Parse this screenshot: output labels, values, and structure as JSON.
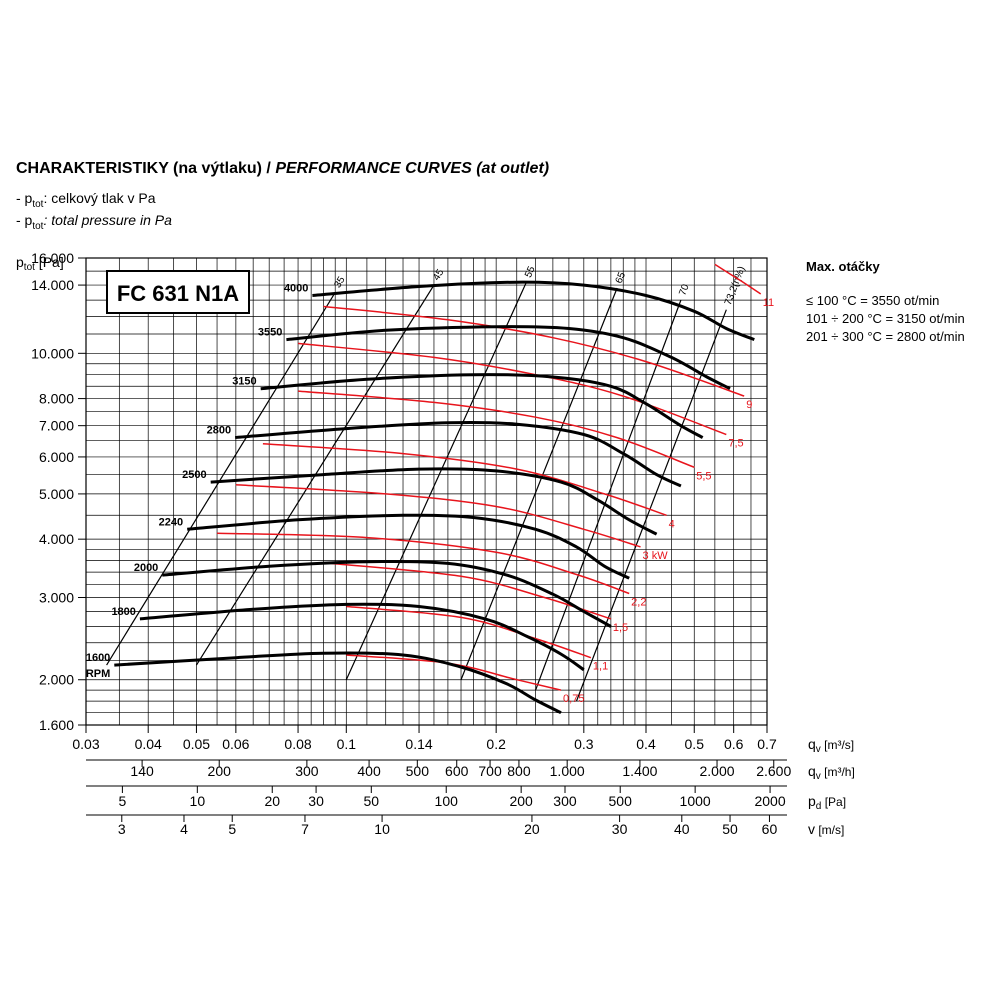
{
  "heading": {
    "cz": "CHARAKTERISTIKY (na výtlaku) /",
    "en": "PERFORMANCE CURVES (at outlet)"
  },
  "legend": {
    "cz_prefix": "- p",
    "cz_sub": "tot",
    "cz_text": ": celkový tlak v Pa",
    "en_prefix": "- p",
    "en_sub": "tot",
    "en_text": ": total pressure in Pa"
  },
  "max_speed": {
    "title": "Max. otáčky",
    "lines": [
      "≤ 100 °C = 3550 ot/min",
      "101 ÷ 200 °C = 3150 ot/min",
      "201 ÷ 300 °C = 2800 ot/min"
    ]
  },
  "colors": {
    "fan_curve": "#000000",
    "power_curve": "#e8141c",
    "grid": "#000000"
  },
  "chart_data": {
    "type": "line",
    "model": "FC 631 N1A",
    "ylabel_base": "p",
    "ylabel_sub": "tot",
    "ylabel_unit": "[Pa]",
    "y_scale": "log",
    "ylim": [
      1600,
      16000
    ],
    "y_ticks": [
      1600,
      2000,
      3000,
      4000,
      5000,
      6000,
      7000,
      8000,
      10000,
      14000,
      16000
    ],
    "y_tick_labels": [
      "1.600",
      "2.000",
      "3.000",
      "4.000",
      "5.000",
      "6.000",
      "7.000",
      "8.000",
      "10.000",
      "14.000",
      "16.000"
    ],
    "x_scale": "log",
    "xlim": [
      0.03,
      0.7
    ],
    "x_axis_label": "q",
    "x_axis_sub": "v",
    "x_axis_unit": "[m³/s]",
    "x_ticks": [
      0.03,
      0.04,
      0.05,
      0.06,
      0.08,
      0.1,
      0.14,
      0.2,
      0.3,
      0.4,
      0.5,
      0.6,
      0.7
    ],
    "x_tick_labels": [
      "0.03",
      "0.04",
      "0.05",
      "0.06",
      "0.08",
      "0.1",
      "0.14",
      "0.2",
      "0.3",
      "0.4",
      "0.5",
      "0.6",
      "0.7"
    ],
    "secondary_axes": [
      {
        "label": "q",
        "sub": "v",
        "unit": "[m³/h]",
        "ticks": [
          140,
          200,
          300,
          400,
          500,
          600,
          700,
          800,
          1000,
          1400,
          2000,
          2600
        ],
        "tick_labels": [
          "140",
          "200",
          "300",
          "400",
          "500",
          "600",
          "700",
          "800",
          "1.000",
          "1.400",
          "2.000",
          "2.600"
        ]
      },
      {
        "label": "p",
        "sub": "d",
        "unit": "[Pa]",
        "ticks": [
          5,
          10,
          20,
          30,
          50,
          100,
          200,
          300,
          500,
          1000,
          2000
        ],
        "tick_labels": [
          "5",
          "10",
          "20",
          "30",
          "50",
          "100",
          "200",
          "300",
          "500",
          "1000",
          "2000"
        ]
      },
      {
        "label": "v",
        "sub": "",
        "unit": "[m/s]",
        "ticks": [
          3,
          4,
          5,
          7,
          10,
          20,
          30,
          40,
          50,
          60
        ],
        "tick_labels": [
          "3",
          "4",
          "5",
          "7",
          "10",
          "20",
          "30",
          "40",
          "50",
          "60"
        ]
      }
    ],
    "speed_unit": "RPM",
    "speed_curves": [
      {
        "rpm": "4000",
        "points": [
          [
            0.0855,
            13300
          ],
          [
            0.14,
            13900
          ],
          [
            0.22,
            14200
          ],
          [
            0.3,
            14000
          ],
          [
            0.4,
            13300
          ],
          [
            0.5,
            12300
          ],
          [
            0.58,
            11300
          ],
          [
            0.66,
            10700
          ]
        ]
      },
      {
        "rpm": "3550",
        "points": [
          [
            0.0758,
            10700
          ],
          [
            0.12,
            11200
          ],
          [
            0.2,
            11400
          ],
          [
            0.28,
            11300
          ],
          [
            0.36,
            10800
          ],
          [
            0.45,
            9800
          ],
          [
            0.53,
            8900
          ],
          [
            0.59,
            8400
          ]
        ]
      },
      {
        "rpm": "3150",
        "points": [
          [
            0.0673,
            8400
          ],
          [
            0.11,
            8800
          ],
          [
            0.18,
            9000
          ],
          [
            0.26,
            8900
          ],
          [
            0.34,
            8500
          ],
          [
            0.4,
            7800
          ],
          [
            0.47,
            7000
          ],
          [
            0.52,
            6600
          ]
        ]
      },
      {
        "rpm": "2800",
        "points": [
          [
            0.0598,
            6600
          ],
          [
            0.1,
            6900
          ],
          [
            0.16,
            7100
          ],
          [
            0.22,
            7050
          ],
          [
            0.3,
            6700
          ],
          [
            0.36,
            6100
          ],
          [
            0.42,
            5500
          ],
          [
            0.47,
            5200
          ]
        ]
      },
      {
        "rpm": "2500",
        "points": [
          [
            0.0534,
            5300
          ],
          [
            0.09,
            5500
          ],
          [
            0.14,
            5650
          ],
          [
            0.2,
            5600
          ],
          [
            0.27,
            5300
          ],
          [
            0.32,
            4850
          ],
          [
            0.37,
            4400
          ],
          [
            0.42,
            4100
          ]
        ]
      },
      {
        "rpm": "2240",
        "points": [
          [
            0.0479,
            4200
          ],
          [
            0.08,
            4400
          ],
          [
            0.13,
            4500
          ],
          [
            0.18,
            4450
          ],
          [
            0.24,
            4200
          ],
          [
            0.29,
            3850
          ],
          [
            0.33,
            3500
          ],
          [
            0.37,
            3300
          ]
        ]
      },
      {
        "rpm": "2000",
        "points": [
          [
            0.0427,
            3350
          ],
          [
            0.07,
            3500
          ],
          [
            0.11,
            3580
          ],
          [
            0.16,
            3550
          ],
          [
            0.21,
            3350
          ],
          [
            0.26,
            3050
          ],
          [
            0.3,
            2800
          ],
          [
            0.34,
            2600
          ]
        ]
      },
      {
        "rpm": "1800",
        "points": [
          [
            0.0385,
            2700
          ],
          [
            0.065,
            2830
          ],
          [
            0.1,
            2900
          ],
          [
            0.14,
            2870
          ],
          [
            0.19,
            2700
          ],
          [
            0.23,
            2480
          ],
          [
            0.27,
            2270
          ],
          [
            0.3,
            2100
          ]
        ]
      },
      {
        "rpm": "1600",
        "points": [
          [
            0.0342,
            2150
          ],
          [
            0.06,
            2230
          ],
          [
            0.09,
            2280
          ],
          [
            0.13,
            2260
          ],
          [
            0.17,
            2130
          ],
          [
            0.21,
            1960
          ],
          [
            0.24,
            1810
          ],
          [
            0.27,
            1700
          ]
        ]
      }
    ],
    "power_unit": "kW",
    "power_curves": [
      {
        "label": "0,75",
        "points": [
          [
            0.1,
            2260
          ],
          [
            0.16,
            2170
          ],
          [
            0.22,
            2000
          ],
          [
            0.27,
            1900
          ]
        ]
      },
      {
        "label": "1,1",
        "points": [
          [
            0.1,
            2870
          ],
          [
            0.17,
            2720
          ],
          [
            0.24,
            2450
          ],
          [
            0.31,
            2230
          ]
        ]
      },
      {
        "label": "1,5",
        "points": [
          [
            0.09,
            3560
          ],
          [
            0.17,
            3330
          ],
          [
            0.25,
            3000
          ],
          [
            0.34,
            2700
          ]
        ]
      },
      {
        "label": "2,2",
        "points": [
          [
            0.055,
            4120
          ],
          [
            0.11,
            4030
          ],
          [
            0.2,
            3750
          ],
          [
            0.29,
            3360
          ],
          [
            0.37,
            3060
          ]
        ]
      },
      {
        "label": "3",
        "points": [
          [
            0.06,
            5230
          ],
          [
            0.12,
            5000
          ],
          [
            0.2,
            4700
          ],
          [
            0.3,
            4200
          ],
          [
            0.39,
            3850
          ]
        ]
      },
      {
        "label": "4",
        "points": [
          [
            0.068,
            6400
          ],
          [
            0.13,
            6100
          ],
          [
            0.22,
            5650
          ],
          [
            0.33,
            5000
          ],
          [
            0.44,
            4500
          ]
        ]
      },
      {
        "label": "5,5",
        "points": [
          [
            0.08,
            8300
          ],
          [
            0.15,
            7850
          ],
          [
            0.24,
            7300
          ],
          [
            0.35,
            6600
          ],
          [
            0.5,
            5700
          ]
        ]
      },
      {
        "label": "7,5",
        "points": [
          [
            0.08,
            10500
          ],
          [
            0.15,
            9800
          ],
          [
            0.24,
            9000
          ],
          [
            0.36,
            8100
          ],
          [
            0.58,
            6700
          ]
        ]
      },
      {
        "label": "9",
        "points": [
          [
            0.09,
            12600
          ],
          [
            0.16,
            11800
          ],
          [
            0.26,
            10800
          ],
          [
            0.4,
            9600
          ],
          [
            0.63,
            8100
          ]
        ]
      },
      {
        "label": "11",
        "points": [
          [
            0.55,
            15500
          ],
          [
            0.62,
            14300
          ],
          [
            0.68,
            13400
          ]
        ]
      }
    ],
    "efficiency_unit": "η%",
    "efficiency_lines": [
      {
        "label": "35",
        "points": [
          [
            0.033,
            2150
          ],
          [
            0.095,
            13500
          ]
        ]
      },
      {
        "label": "45",
        "points": [
          [
            0.05,
            2150
          ],
          [
            0.15,
            14000
          ]
        ]
      },
      {
        "label": "55",
        "points": [
          [
            0.1,
            2000
          ],
          [
            0.23,
            14200
          ]
        ]
      },
      {
        "label": "65",
        "points": [
          [
            0.17,
            2000
          ],
          [
            0.35,
            13800
          ]
        ]
      },
      {
        "label": "70",
        "points": [
          [
            0.24,
            1900
          ],
          [
            0.47,
            13000
          ]
        ]
      },
      {
        "label": "73,2(η%)",
        "points": [
          [
            0.29,
            1800
          ],
          [
            0.58,
            12400
          ]
        ]
      }
    ]
  }
}
